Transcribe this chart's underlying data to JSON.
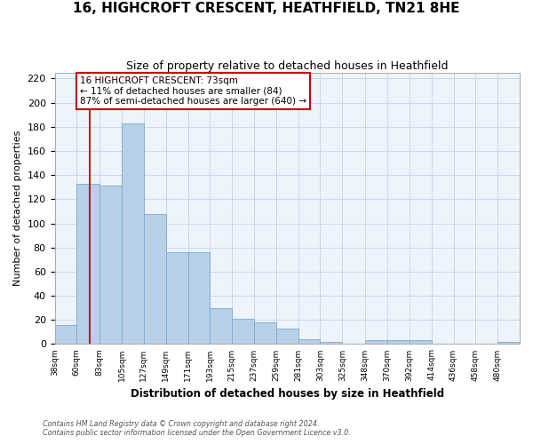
{
  "title": "16, HIGHCROFT CRESCENT, HEATHFIELD, TN21 8HE",
  "subtitle": "Size of property relative to detached houses in Heathfield",
  "xlabel": "Distribution of detached houses by size in Heathfield",
  "ylabel": "Number of detached properties",
  "bin_labels": [
    "38sqm",
    "60sqm",
    "83sqm",
    "105sqm",
    "127sqm",
    "149sqm",
    "171sqm",
    "193sqm",
    "215sqm",
    "237sqm",
    "259sqm",
    "281sqm",
    "303sqm",
    "325sqm",
    "348sqm",
    "370sqm",
    "392sqm",
    "414sqm",
    "436sqm",
    "458sqm",
    "480sqm"
  ],
  "bin_edges": [
    38,
    60,
    83,
    105,
    127,
    149,
    171,
    193,
    215,
    237,
    259,
    281,
    303,
    325,
    348,
    370,
    392,
    414,
    436,
    458,
    480
  ],
  "bar_heights": [
    16,
    133,
    131,
    183,
    108,
    76,
    76,
    30,
    21,
    18,
    13,
    4,
    2,
    0,
    3,
    3,
    3,
    0,
    0,
    0,
    2
  ],
  "bar_color": "#b8d0e8",
  "bar_edgecolor": "#7aaad0",
  "grid_color": "#c8d8ec",
  "background_color": "#eef4fb",
  "property_value": 73,
  "vline_color": "#cc0000",
  "annotation_text": "16 HIGHCROFT CRESCENT: 73sqm\n← 11% of detached houses are smaller (84)\n87% of semi-detached houses are larger (640) →",
  "annotation_box_edgecolor": "#cc0000",
  "ylim": [
    0,
    225
  ],
  "yticks": [
    0,
    20,
    40,
    60,
    80,
    100,
    120,
    140,
    160,
    180,
    200,
    220
  ],
  "footer_line1": "Contains HM Land Registry data © Crown copyright and database right 2024.",
  "footer_line2": "Contains public sector information licensed under the Open Government Licence v3.0."
}
